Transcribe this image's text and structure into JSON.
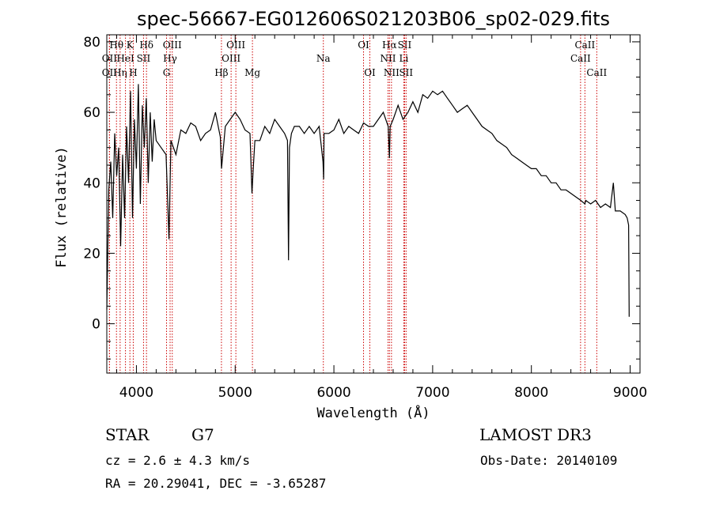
{
  "chart_data": {
    "type": "line",
    "title": "spec-56667-EG012606S021203B06_sp02-029.fits",
    "xlabel": "Wavelength (Å)",
    "ylabel": "Flux (relative)",
    "xlim": [
      3700,
      9100
    ],
    "ylim": [
      -14,
      82
    ],
    "xticks": [
      4000,
      5000,
      6000,
      7000,
      8000,
      9000
    ],
    "yticks": [
      0,
      20,
      40,
      60,
      80
    ],
    "series": [
      {
        "name": "flux",
        "x": [
          3700,
          3720,
          3740,
          3760,
          3780,
          3800,
          3820,
          3840,
          3860,
          3880,
          3900,
          3920,
          3940,
          3960,
          3980,
          4000,
          4020,
          4040,
          4060,
          4080,
          4100,
          4120,
          4140,
          4160,
          4180,
          4200,
          4250,
          4300,
          4330,
          4350,
          4400,
          4450,
          4500,
          4550,
          4600,
          4650,
          4700,
          4750,
          4800,
          4850,
          4862,
          4900,
          4950,
          5000,
          5050,
          5100,
          5150,
          5170,
          5183,
          5200,
          5250,
          5300,
          5350,
          5400,
          5450,
          5500,
          5530,
          5540,
          5550,
          5570,
          5600,
          5650,
          5700,
          5750,
          5800,
          5850,
          5890,
          5896,
          5900,
          5950,
          6000,
          6050,
          6100,
          6150,
          6200,
          6250,
          6300,
          6350,
          6400,
          6450,
          6500,
          6550,
          6563,
          6570,
          6600,
          6650,
          6700,
          6750,
          6800,
          6850,
          6900,
          6950,
          7000,
          7050,
          7100,
          7150,
          7200,
          7250,
          7300,
          7350,
          7400,
          7450,
          7500,
          7550,
          7600,
          7650,
          7700,
          7750,
          7800,
          7850,
          7900,
          7950,
          8000,
          8050,
          8100,
          8150,
          8200,
          8250,
          8300,
          8350,
          8400,
          8450,
          8500,
          8542,
          8550,
          8600,
          8650,
          8700,
          8750,
          8800,
          8830,
          8850,
          8900,
          8950,
          8970,
          8985,
          8990
        ],
        "values": [
          4,
          38,
          46,
          30,
          54,
          42,
          50,
          22,
          48,
          30,
          56,
          40,
          66,
          30,
          58,
          44,
          68,
          34,
          62,
          50,
          64,
          40,
          60,
          46,
          58,
          52,
          50,
          48,
          24,
          52,
          48,
          55,
          54,
          57,
          56,
          52,
          54,
          55,
          60,
          53,
          44,
          56,
          58,
          60,
          58,
          55,
          54,
          37,
          44,
          52,
          52,
          56,
          54,
          58,
          56,
          54,
          52,
          18,
          50,
          54,
          56,
          56,
          54,
          56,
          54,
          56,
          46,
          41,
          54,
          54,
          55,
          58,
          54,
          56,
          55,
          54,
          57,
          56,
          56,
          58,
          60,
          56,
          47,
          56,
          58,
          62,
          58,
          60,
          63,
          60,
          65,
          64,
          66,
          65,
          66,
          64,
          62,
          60,
          61,
          62,
          60,
          58,
          56,
          55,
          54,
          52,
          51,
          50,
          48,
          47,
          46,
          45,
          44,
          44,
          42,
          42,
          40,
          40,
          38,
          38,
          37,
          36,
          35,
          34,
          35,
          34,
          35,
          33,
          34,
          33,
          40,
          32,
          32,
          31,
          30,
          28,
          2
        ]
      }
    ],
    "line_markers": [
      {
        "label": "OII",
        "wavelength": 3727,
        "row": 3
      },
      {
        "label": "Hθ",
        "wavelength": 3798,
        "row": 1
      },
      {
        "label": "Hη",
        "wavelength": 3835,
        "row": 3
      },
      {
        "label": "OII",
        "wavelength": 3727,
        "row": 2
      },
      {
        "label": "HeI",
        "wavelength": 3889,
        "row": 2
      },
      {
        "label": "K",
        "wavelength": 3934,
        "row": 1
      },
      {
        "label": "H",
        "wavelength": 3968,
        "row": 3
      },
      {
        "label": "SII",
        "wavelength": 4072,
        "row": 2
      },
      {
        "label": "Hδ",
        "wavelength": 4102,
        "row": 1
      },
      {
        "label": "OIII",
        "wavelength": 4363,
        "row": 1
      },
      {
        "label": "Hγ",
        "wavelength": 4341,
        "row": 2
      },
      {
        "label": "G",
        "wavelength": 4305,
        "row": 3
      },
      {
        "label": "Hβ",
        "wavelength": 4861,
        "row": 3
      },
      {
        "label": "OIII",
        "wavelength": 4959,
        "row": 2
      },
      {
        "label": "OIII",
        "wavelength": 5007,
        "row": 1
      },
      {
        "label": "Mg",
        "wavelength": 5175,
        "row": 3
      },
      {
        "label": "Na",
        "wavelength": 5893,
        "row": 2
      },
      {
        "label": "OI",
        "wavelength": 6300,
        "row": 1
      },
      {
        "label": "OI",
        "wavelength": 6364,
        "row": 3
      },
      {
        "label": "Hα",
        "wavelength": 6563,
        "row": 1
      },
      {
        "label": "NII",
        "wavelength": 6548,
        "row": 2
      },
      {
        "label": "NII",
        "wavelength": 6583,
        "row": 3
      },
      {
        "label": "SII",
        "wavelength": 6716,
        "row": 1
      },
      {
        "label": "Li",
        "wavelength": 6708,
        "row": 2
      },
      {
        "label": "SII",
        "wavelength": 6731,
        "row": 3
      },
      {
        "label": "CaII",
        "wavelength": 8542,
        "row": 1
      },
      {
        "label": "CaII",
        "wavelength": 8498,
        "row": 2
      },
      {
        "label": "CaII",
        "wavelength": 8662,
        "row": 3
      }
    ],
    "marker_color": "#cc0000",
    "line_color": "#000000"
  },
  "info": {
    "object_class": "STAR",
    "subclass": "G7",
    "survey": "LAMOST DR3",
    "redshift_text": "cz = 2.6 ± 4.3 km/s",
    "obs_date": "Obs-Date: 20140109",
    "coords": "RA =  20.29041, DEC =  -3.65287"
  }
}
